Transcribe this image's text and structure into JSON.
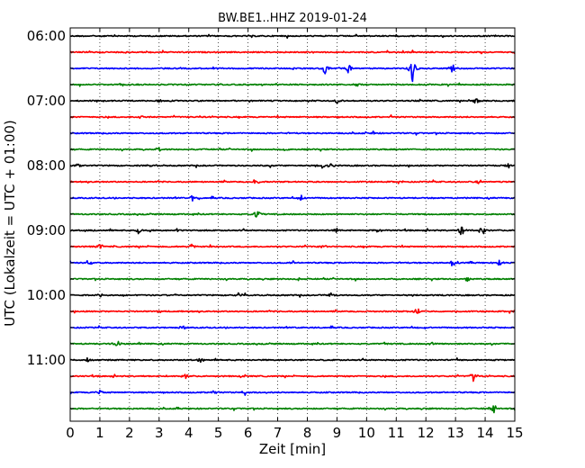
{
  "chart_data": {
    "type": "line",
    "title": "BW.BE1..HHZ 2019-01-24",
    "xlabel": "Zeit  [min]",
    "ylabel": "UTC (Lokalzeit = UTC + 01:00)",
    "xlim": [
      0,
      15
    ],
    "x_ticks": [
      "0",
      "1",
      "2",
      "3",
      "4",
      "5",
      "6",
      "7",
      "8",
      "9",
      "10",
      "11",
      "12",
      "13",
      "14",
      "15"
    ],
    "grid": "vertical dotted",
    "trace_interval_minutes": 15,
    "trace_color_cycle": [
      "#000000",
      "#ff0000",
      "#0000ff",
      "#008000"
    ],
    "rows": [
      {
        "start": "06:00",
        "color": "#000000",
        "label": "06:00",
        "events": []
      },
      {
        "start": "06:15",
        "color": "#ff0000",
        "label": "",
        "events": []
      },
      {
        "start": "06:30",
        "color": "#0000ff",
        "label": "",
        "events": [
          {
            "t": 8.6,
            "amp": 8
          },
          {
            "t": 9.4,
            "amp": 9
          },
          {
            "t": 11.5,
            "amp": 9
          },
          {
            "t": 12.9,
            "amp": 6
          },
          {
            "t": 11.55,
            "amp": 12
          }
        ]
      },
      {
        "start": "06:45",
        "color": "#008000",
        "label": "",
        "events": [
          {
            "t": 9.7,
            "amp": 3
          }
        ]
      },
      {
        "start": "07:00",
        "color": "#000000",
        "label": "07:00",
        "events": [
          {
            "t": 3.0,
            "amp": 2
          },
          {
            "t": 9.0,
            "amp": 3
          },
          {
            "t": 13.7,
            "amp": 4
          }
        ]
      },
      {
        "start": "07:15",
        "color": "#ff0000",
        "label": "",
        "events": [
          {
            "t": 2.4,
            "amp": 2
          }
        ]
      },
      {
        "start": "07:30",
        "color": "#0000ff",
        "label": "",
        "events": [
          {
            "t": 10.2,
            "amp": 3
          }
        ]
      },
      {
        "start": "07:45",
        "color": "#008000",
        "label": "",
        "events": [
          {
            "t": 3.0,
            "amp": 3
          },
          {
            "t": 7.2,
            "amp": 2
          }
        ]
      },
      {
        "start": "08:00",
        "color": "#000000",
        "label": "08:00",
        "events": [
          {
            "t": 0.3,
            "amp": 4
          },
          {
            "t": 2.8,
            "amp": 3
          },
          {
            "t": 8.5,
            "amp": 4
          },
          {
            "t": 8.8,
            "amp": 4
          },
          {
            "t": 14.8,
            "amp": 4
          }
        ]
      },
      {
        "start": "08:15",
        "color": "#ff0000",
        "label": "",
        "events": [
          {
            "t": 6.3,
            "amp": 3
          },
          {
            "t": 13.8,
            "amp": 4
          }
        ]
      },
      {
        "start": "08:30",
        "color": "#0000ff",
        "label": "",
        "events": [
          {
            "t": 4.1,
            "amp": 4
          },
          {
            "t": 7.8,
            "amp": 3
          }
        ]
      },
      {
        "start": "08:45",
        "color": "#008000",
        "label": "",
        "events": [
          {
            "t": 6.3,
            "amp": 6
          }
        ]
      },
      {
        "start": "09:00",
        "color": "#000000",
        "label": "09:00",
        "events": [
          {
            "t": 2.3,
            "amp": 4
          },
          {
            "t": 3.6,
            "amp": 3
          },
          {
            "t": 9.0,
            "amp": 3
          },
          {
            "t": 10.4,
            "amp": 3
          },
          {
            "t": 13.2,
            "amp": 9
          },
          {
            "t": 13.9,
            "amp": 8
          }
        ]
      },
      {
        "start": "09:15",
        "color": "#ff0000",
        "label": "",
        "events": [
          {
            "t": 1.0,
            "amp": 4
          },
          {
            "t": 4.1,
            "amp": 3
          },
          {
            "t": 8.5,
            "amp": 2
          }
        ]
      },
      {
        "start": "09:30",
        "color": "#0000ff",
        "label": "",
        "events": [
          {
            "t": 0.6,
            "amp": 3
          },
          {
            "t": 7.5,
            "amp": 3
          },
          {
            "t": 12.9,
            "amp": 4
          },
          {
            "t": 14.5,
            "amp": 4
          }
        ]
      },
      {
        "start": "09:45",
        "color": "#008000",
        "label": "",
        "events": [
          {
            "t": 7.7,
            "amp": 2
          },
          {
            "t": 13.4,
            "amp": 3
          }
        ]
      },
      {
        "start": "10:00",
        "color": "#000000",
        "label": "10:00",
        "events": [
          {
            "t": 1.0,
            "amp": 3
          },
          {
            "t": 5.7,
            "amp": 3
          },
          {
            "t": 8.8,
            "amp": 3
          }
        ]
      },
      {
        "start": "10:15",
        "color": "#ff0000",
        "label": "",
        "events": [
          {
            "t": 3.0,
            "amp": 2
          },
          {
            "t": 11.7,
            "amp": 6
          }
        ]
      },
      {
        "start": "10:30",
        "color": "#0000ff",
        "label": "",
        "events": [
          {
            "t": 3.8,
            "amp": 3
          }
        ]
      },
      {
        "start": "10:45",
        "color": "#008000",
        "label": "",
        "events": [
          {
            "t": 1.6,
            "amp": 5
          },
          {
            "t": 12.2,
            "amp": 3
          }
        ]
      },
      {
        "start": "11:00",
        "color": "#000000",
        "label": "11:00",
        "events": [
          {
            "t": 0.6,
            "amp": 3
          },
          {
            "t": 4.4,
            "amp": 4
          }
        ]
      },
      {
        "start": "11:15",
        "color": "#ff0000",
        "label": "",
        "events": [
          {
            "t": 3.9,
            "amp": 3
          },
          {
            "t": 13.6,
            "amp": 6
          }
        ]
      },
      {
        "start": "11:30",
        "color": "#0000ff",
        "label": "",
        "events": [
          {
            "t": 1.0,
            "amp": 4
          },
          {
            "t": 4.9,
            "amp": 3
          },
          {
            "t": 5.9,
            "amp": 3
          }
        ]
      },
      {
        "start": "11:45",
        "color": "#008000",
        "label": "",
        "events": [
          {
            "t": 14.3,
            "amp": 5
          }
        ]
      }
    ]
  }
}
